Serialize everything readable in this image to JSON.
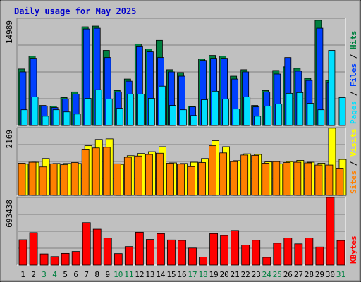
{
  "title": "Daily usage for May 2025",
  "colors": {
    "background": "#c0c0c0",
    "title": "#0000cc",
    "hits": "#008040",
    "files": "#0040ff",
    "pages": "#00e0ff",
    "visits": "#ffff00",
    "sites": "#ff8000",
    "kbytes": "#ff0000",
    "weekend_day": "#008040",
    "weekday": "#000000"
  },
  "chart_data": [
    {
      "type": "bar",
      "panel": "hits-files-pages",
      "legend": [
        "Pages",
        "Files",
        "Hits"
      ],
      "ymax_label": "14989",
      "ylim": [
        0,
        14989
      ],
      "categories": [
        "1",
        "2",
        "3",
        "4",
        "5",
        "6",
        "7",
        "8",
        "9",
        "10",
        "11",
        "12",
        "13",
        "14",
        "15",
        "16",
        "17",
        "18",
        "19",
        "20",
        "21",
        "22",
        "23",
        "24",
        "25",
        "26",
        "27",
        "28",
        "29",
        "30",
        "31"
      ],
      "weekend_days": [
        "3",
        "4",
        "10",
        "11",
        "17",
        "18",
        "24",
        "25",
        "31"
      ],
      "series": [
        {
          "name": "Hits",
          "values": [
            7900,
            9700,
            2800,
            2700,
            3900,
            4700,
            13800,
            13900,
            10500,
            4900,
            6500,
            11400,
            10700,
            11900,
            7800,
            7400,
            2700,
            9300,
            9800,
            9700,
            6900,
            7800,
            2800,
            4900,
            7700,
            8200,
            8000,
            6600,
            14700,
            6300,
            0
          ]
        },
        {
          "name": "Files",
          "values": [
            7500,
            9400,
            2700,
            2500,
            3700,
            4400,
            13500,
            13600,
            9500,
            4700,
            6200,
            11100,
            10300,
            9500,
            7500,
            6900,
            2600,
            9100,
            9400,
            9400,
            6500,
            7500,
            2600,
            4700,
            7200,
            9500,
            7600,
            6300,
            13600,
            6000,
            0
          ]
        },
        {
          "name": "Pages",
          "values": [
            2200,
            4000,
            1300,
            2200,
            1900,
            1600,
            3800,
            5000,
            3700,
            2400,
            4400,
            4400,
            3800,
            5500,
            2800,
            2200,
            1400,
            3600,
            4800,
            3700,
            2300,
            4000,
            1300,
            2700,
            3000,
            4500,
            4600,
            3100,
            2200,
            10500,
            3900
          ]
        }
      ]
    },
    {
      "type": "bar",
      "panel": "visits-sites",
      "legend": [
        "Sites",
        "Visits"
      ],
      "ymax_label": "2169",
      "ylim": [
        0,
        2169
      ],
      "series": [
        {
          "name": "Visits",
          "values": [
            1000,
            1060,
            1180,
            1020,
            1020,
            1020,
            1590,
            1790,
            1810,
            990,
            1270,
            1340,
            1400,
            1560,
            1040,
            1020,
            1060,
            1180,
            1750,
            1560,
            1110,
            1330,
            1310,
            1070,
            1010,
            1080,
            1120,
            1060,
            1030,
            2150,
            1150
          ]
        },
        {
          "name": "Sites",
          "values": [
            1030,
            1060,
            910,
            1010,
            980,
            1050,
            1460,
            1520,
            1540,
            1010,
            1220,
            1260,
            1310,
            1350,
            1030,
            1000,
            920,
            1050,
            1590,
            1360,
            1080,
            1290,
            1280,
            1030,
            1080,
            1050,
            1060,
            1040,
            970,
            970,
            850
          ]
        }
      ]
    },
    {
      "type": "bar",
      "panel": "kbytes",
      "legend": [
        "KBytes"
      ],
      "ymax_label": "693438",
      "ylim": [
        0,
        693438
      ],
      "series": [
        {
          "name": "KBytes",
          "values": [
            260000,
            333000,
            115000,
            88000,
            120000,
            140000,
            435000,
            368000,
            277000,
            118000,
            190000,
            337000,
            263000,
            323000,
            258000,
            253000,
            175000,
            83000,
            323000,
            303000,
            355000,
            205000,
            255000,
            80000,
            225000,
            278000,
            218000,
            278000,
            186000,
            693438,
            252000
          ]
        }
      ]
    }
  ]
}
